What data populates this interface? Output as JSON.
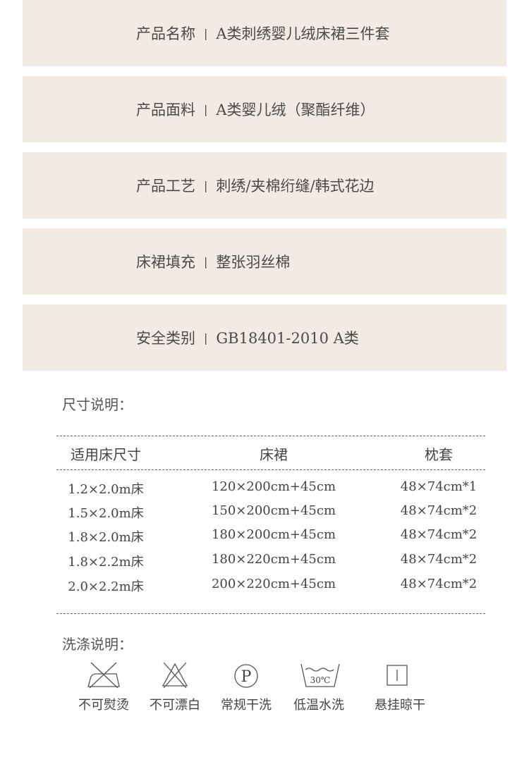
{
  "specs": [
    {
      "label": "产品名称",
      "value": "A类刺绣婴儿绒床裙三件套"
    },
    {
      "label": "产品面料",
      "value": "A类婴儿绒（聚酯纤维）"
    },
    {
      "label": "产品工艺",
      "value": "刺绣/夹棉绗缝/韩式花边"
    },
    {
      "label": "床裙填充",
      "value": "整张羽丝棉"
    },
    {
      "label": "安全类别",
      "value": "GB18401-2010 A类"
    }
  ],
  "separator": "|",
  "size_title": "尺寸说明：",
  "size_table": {
    "headers": [
      "适用床尺寸",
      "床裙",
      "枕套"
    ],
    "rows": [
      [
        "1.2×2.0m床",
        "120×200cm+45cm",
        "48×74cm*1"
      ],
      [
        "1.5×2.0m床",
        "150×200cm+45cm",
        "48×74cm*2"
      ],
      [
        "1.8×2.0m床",
        "180×200cm+45cm",
        "48×74cm*2"
      ],
      [
        "1.8×2.2m床",
        "180×220cm+45cm",
        "48×74cm*2"
      ],
      [
        "2.0×2.2m床",
        "200×220cm+45cm",
        "48×74cm*2"
      ]
    ]
  },
  "wash_title": "洗涤说明：",
  "wash": [
    {
      "icon": "no-iron-icon",
      "label": "不可熨烫"
    },
    {
      "icon": "no-bleach-icon",
      "label": "不可漂白"
    },
    {
      "icon": "dry-clean-icon",
      "label": "常规干洗",
      "glyph": "P"
    },
    {
      "icon": "wash-30-icon",
      "label": "低温水洗",
      "glyph": "30℃"
    },
    {
      "icon": "hang-dry-icon",
      "label": "悬挂晾干"
    }
  ]
}
